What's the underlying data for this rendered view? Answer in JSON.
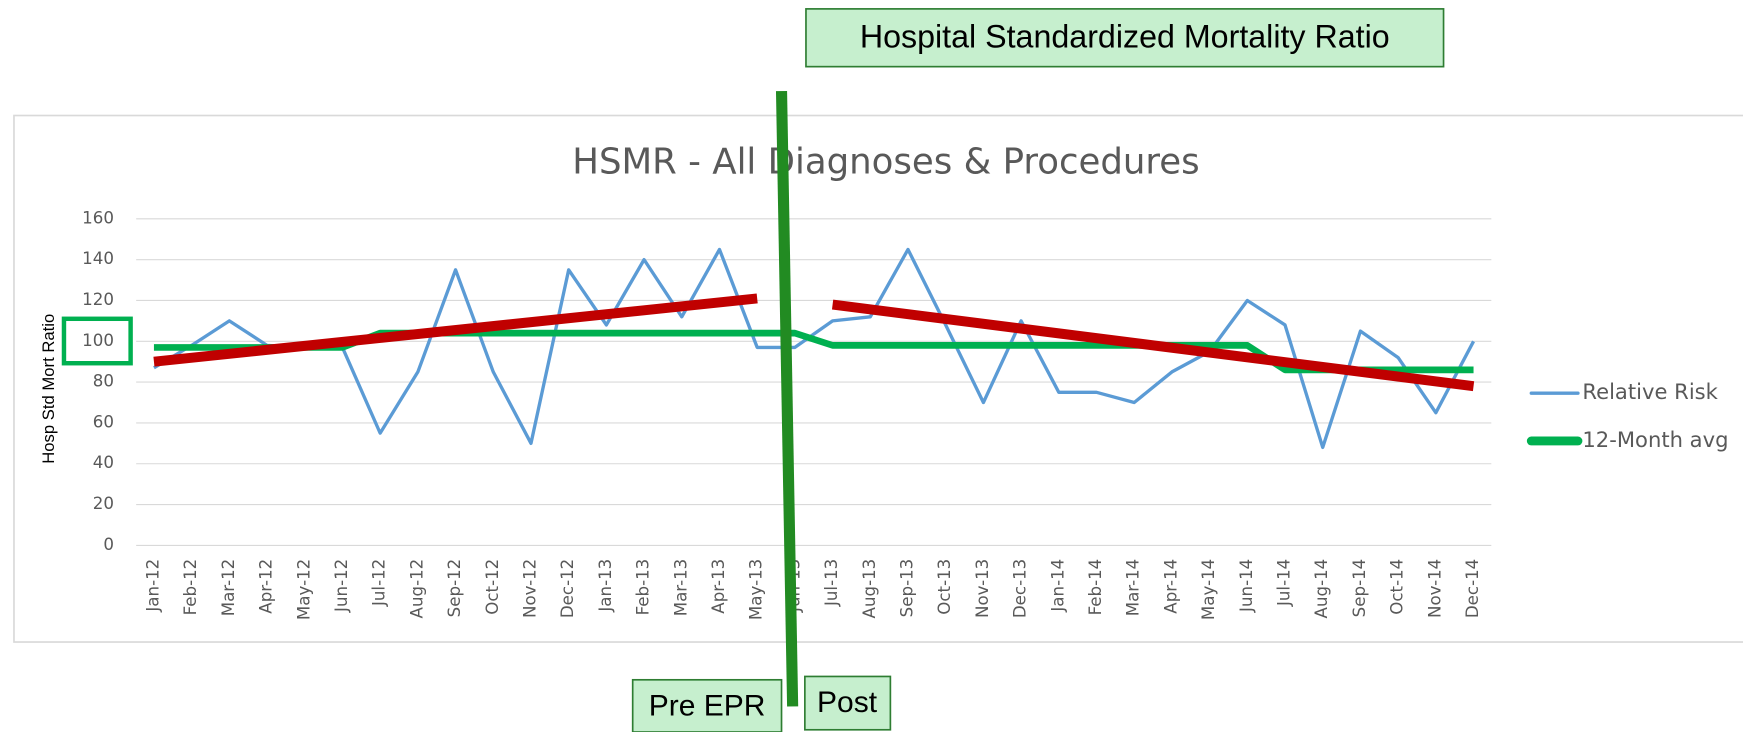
{
  "chart_data": {
    "type": "line",
    "title": "HSMR - All Diagnoses & Procedures",
    "ylabel": "Hosp Std Mort Ratio",
    "categories": [
      "Jan-12",
      "Feb-12",
      "Mar-12",
      "Apr-12",
      "May-12",
      "Jun-12",
      "Jul-12",
      "Aug-12",
      "Sep-12",
      "Oct-12",
      "Nov-12",
      "Dec-12",
      "Jan-13",
      "Feb-13",
      "Mar-13",
      "Apr-13",
      "May-13",
      "Jun-13",
      "Jul-13",
      "Aug-13",
      "Sep-13",
      "Oct-13",
      "Nov-13",
      "Dec-13",
      "Jan-14",
      "Feb-14",
      "Mar-14",
      "Apr-14",
      "May-14",
      "Jun-14",
      "Jul-14",
      "Aug-14",
      "Sep-14",
      "Oct-14",
      "Nov-14",
      "Dec-14"
    ],
    "series": [
      {
        "name": "Relative Risk",
        "color": "#5b9bd5",
        "values": [
          87,
          98,
          110,
          98,
          97,
          97,
          55,
          85,
          135,
          85,
          50,
          135,
          108,
          140,
          112,
          145,
          97,
          97,
          110,
          112,
          145,
          108,
          70,
          110,
          75,
          75,
          70,
          85,
          95,
          120,
          108,
          48,
          105,
          92,
          65,
          100
        ]
      },
      {
        "name": "12-Month avg",
        "color": "#00b050",
        "values": [
          97,
          97,
          97,
          97,
          97,
          97,
          104,
          104,
          104,
          104,
          104,
          104,
          104,
          104,
          104,
          104,
          104,
          104,
          98,
          98,
          98,
          98,
          98,
          98,
          98,
          98,
          98,
          98,
          98,
          98,
          86,
          86,
          86,
          86,
          86,
          86
        ]
      }
    ],
    "trendlines": [
      {
        "color": "#c00000",
        "x": [
          "Jan-12",
          "May-13"
        ],
        "values": [
          90,
          121
        ]
      },
      {
        "color": "#c00000",
        "x": [
          "Jul-13",
          "Dec-14"
        ],
        "values": [
          118,
          78
        ]
      }
    ],
    "annotations": [
      "Hospital Standardized Mortality Ratio",
      "Pre EPR",
      "Post"
    ],
    "ylim": [
      0,
      160
    ],
    "yticks": [
      0,
      20,
      40,
      60,
      80,
      100,
      120,
      140,
      160
    ],
    "grid": true,
    "legend": "right"
  }
}
